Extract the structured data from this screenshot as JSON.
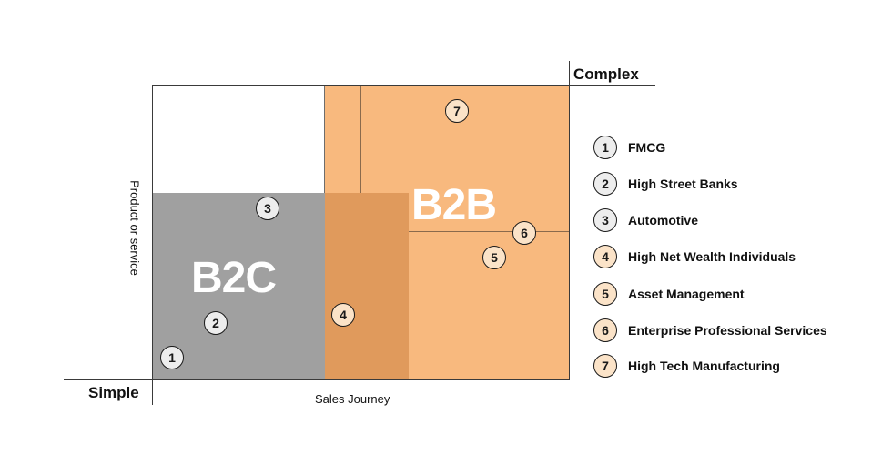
{
  "regions": {
    "b2c_label": "B2C",
    "b2b_label": "B2B"
  },
  "axes": {
    "top_label": "Complex",
    "bottom_label": "Simple",
    "x_label": "Sales Journey",
    "y_label": "Product or service"
  },
  "markers": [
    {
      "num": "1",
      "group": "b2c"
    },
    {
      "num": "2",
      "group": "b2c"
    },
    {
      "num": "3",
      "group": "b2c"
    },
    {
      "num": "4",
      "group": "b2b"
    },
    {
      "num": "5",
      "group": "b2b"
    },
    {
      "num": "6",
      "group": "b2b"
    },
    {
      "num": "7",
      "group": "b2b"
    }
  ],
  "legend": [
    {
      "num": "1",
      "label": "FMCG"
    },
    {
      "num": "2",
      "label": "High Street Banks"
    },
    {
      "num": "3",
      "label": "Automotive"
    },
    {
      "num": "4",
      "label": "High Net Wealth Individuals"
    },
    {
      "num": "5",
      "label": "Asset Management"
    },
    {
      "num": "6",
      "label": "Enterprise Professional Services"
    },
    {
      "num": "7",
      "label": "High Tech Manufacturing"
    }
  ],
  "colors": {
    "b2b_region": "#F8B97E",
    "b2c_region": "#A0A0A0",
    "overlap_region": "#E09A5C",
    "b2c_marker_fill": "#EDEDED",
    "b2b_marker_fill": "#FBE3C8"
  }
}
